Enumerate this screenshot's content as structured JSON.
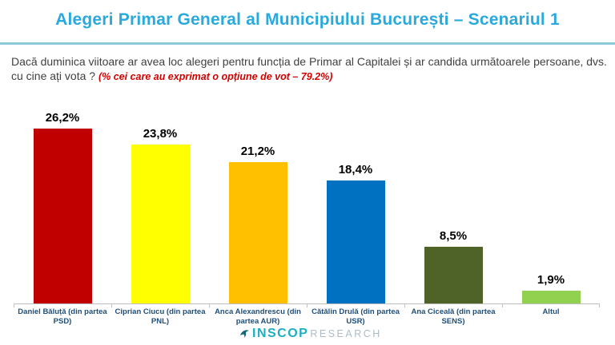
{
  "slide": {
    "title": "Alegeri Primar General al Municipiului București – Scenariul 1",
    "question": "Dacă duminica viitoare ar avea loc alegeri pentru funcția de Primar al Capitalei și ar candida următoarele persoane, dvs. cu cine ați vota ? ",
    "note": "(% cei care au exprimat o opțiune de vot – 79.2%)"
  },
  "chart_data": {
    "type": "bar",
    "title": "Alegeri Primar General al Municipiului București – Scenariul 1",
    "categories": [
      "Daniel Băluță (din partea PSD)",
      "Ciprian Ciucu (din partea PNL)",
      "Anca Alexandrescu (din partea AUR)",
      "Cătălin Drulă (din partea USR)",
      "Ana Ciceală (din partea SENS)",
      "Altul"
    ],
    "values": [
      26.2,
      23.8,
      21.2,
      18.4,
      8.5,
      1.9
    ],
    "value_labels": [
      "26,2%",
      "23,8%",
      "21,2%",
      "18,4%",
      "8,5%",
      "1,9%"
    ],
    "bar_colors": [
      "#C00000",
      "#FFFF00",
      "#FFC000",
      "#0070C0",
      "#4F6228",
      "#92D050"
    ],
    "xlabel": "",
    "ylabel": "",
    "ylim": [
      0,
      28
    ],
    "grid": false,
    "legend": false,
    "category_label_color": "#1F4E79",
    "axis_color": "#BFBFBF"
  },
  "logo": {
    "name": "INSCOP",
    "suffix": "RESEARCH"
  },
  "colors": {
    "title": "#29A9DC",
    "divider": "#8CC7DA",
    "question_text": "#404040",
    "note_text": "#D40000",
    "logo_teal": "#1CAEC2",
    "logo_gray": "#AEBBC4"
  }
}
